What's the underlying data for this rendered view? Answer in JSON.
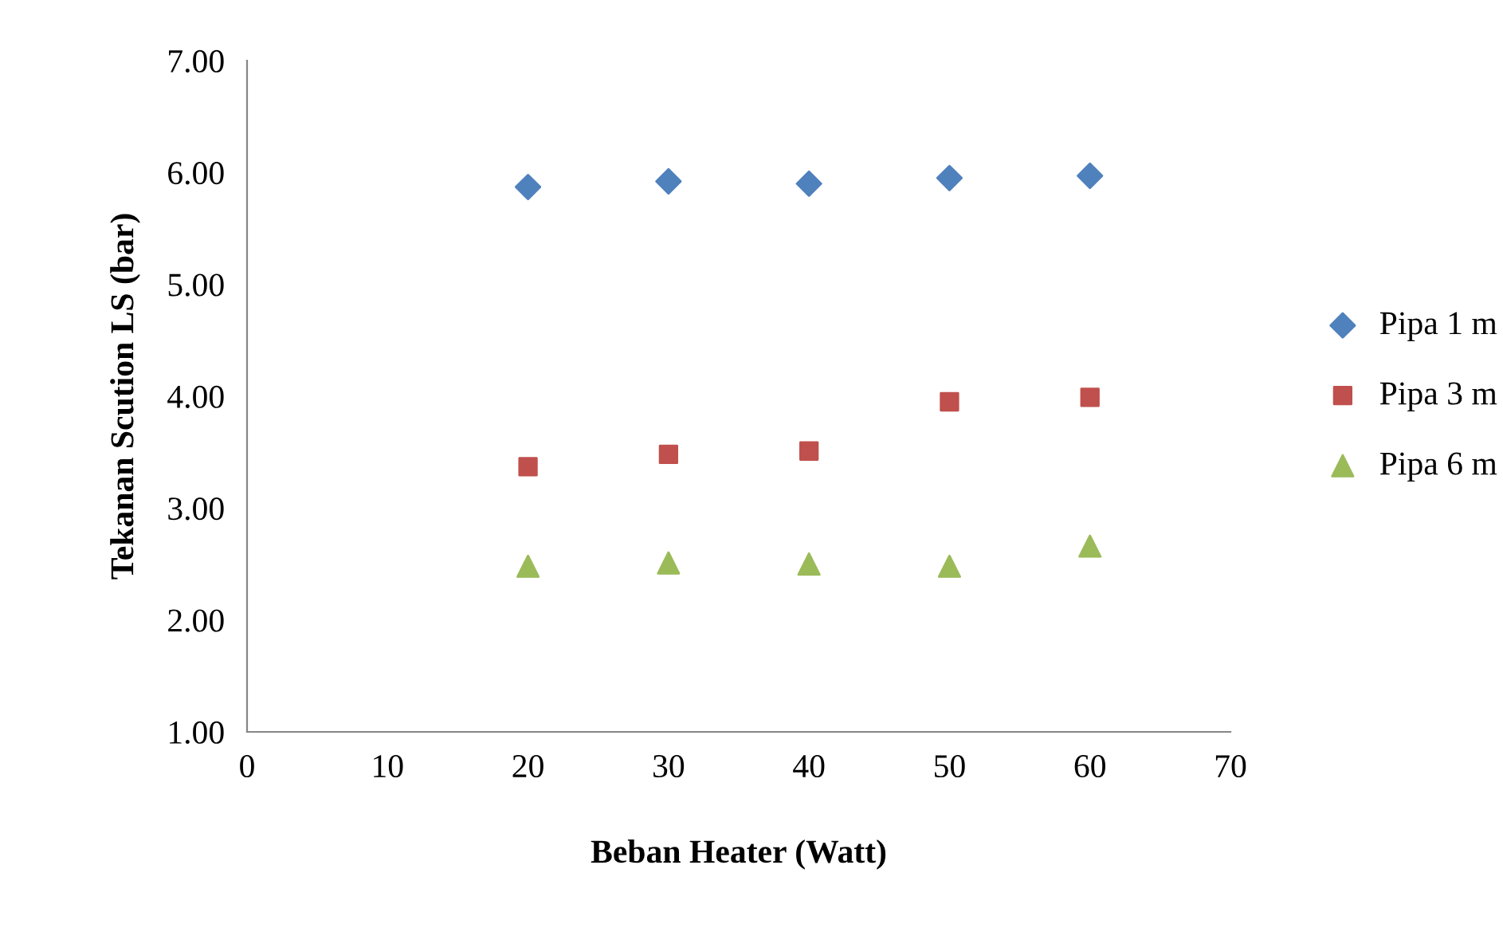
{
  "chart_data": {
    "type": "scatter",
    "xlabel": "Beban Heater (Watt)",
    "ylabel": "Tekanan Scution LS (bar)",
    "x": [
      20,
      30,
      40,
      50,
      60
    ],
    "series": [
      {
        "name": "Pipa 1 m",
        "color": "#4f81bd",
        "marker": "diamond",
        "values": [
          5.87,
          5.92,
          5.9,
          5.95,
          5.97
        ]
      },
      {
        "name": "Pipa 3 m",
        "color": "#c0504d",
        "marker": "square",
        "values": [
          3.37,
          3.48,
          3.51,
          3.95,
          3.99
        ]
      },
      {
        "name": "Pipa 6 m",
        "color": "#9bbb59",
        "marker": "triangle",
        "values": [
          2.48,
          2.51,
          2.5,
          2.48,
          2.66
        ]
      }
    ],
    "xlim": [
      0,
      70
    ],
    "xticks": [
      0,
      10,
      20,
      30,
      40,
      50,
      60,
      70
    ],
    "ylim": [
      1,
      7
    ],
    "yticks": [
      {
        "value": 1,
        "label": "1.00"
      },
      {
        "value": 2,
        "label": "2.00"
      },
      {
        "value": 3,
        "label": "3.00"
      },
      {
        "value": 4,
        "label": "4.00"
      },
      {
        "value": 5,
        "label": "5.00"
      },
      {
        "value": 6,
        "label": "6.00"
      },
      {
        "value": 7,
        "label": "7.00"
      }
    ],
    "grid": false,
    "legend": "right"
  }
}
